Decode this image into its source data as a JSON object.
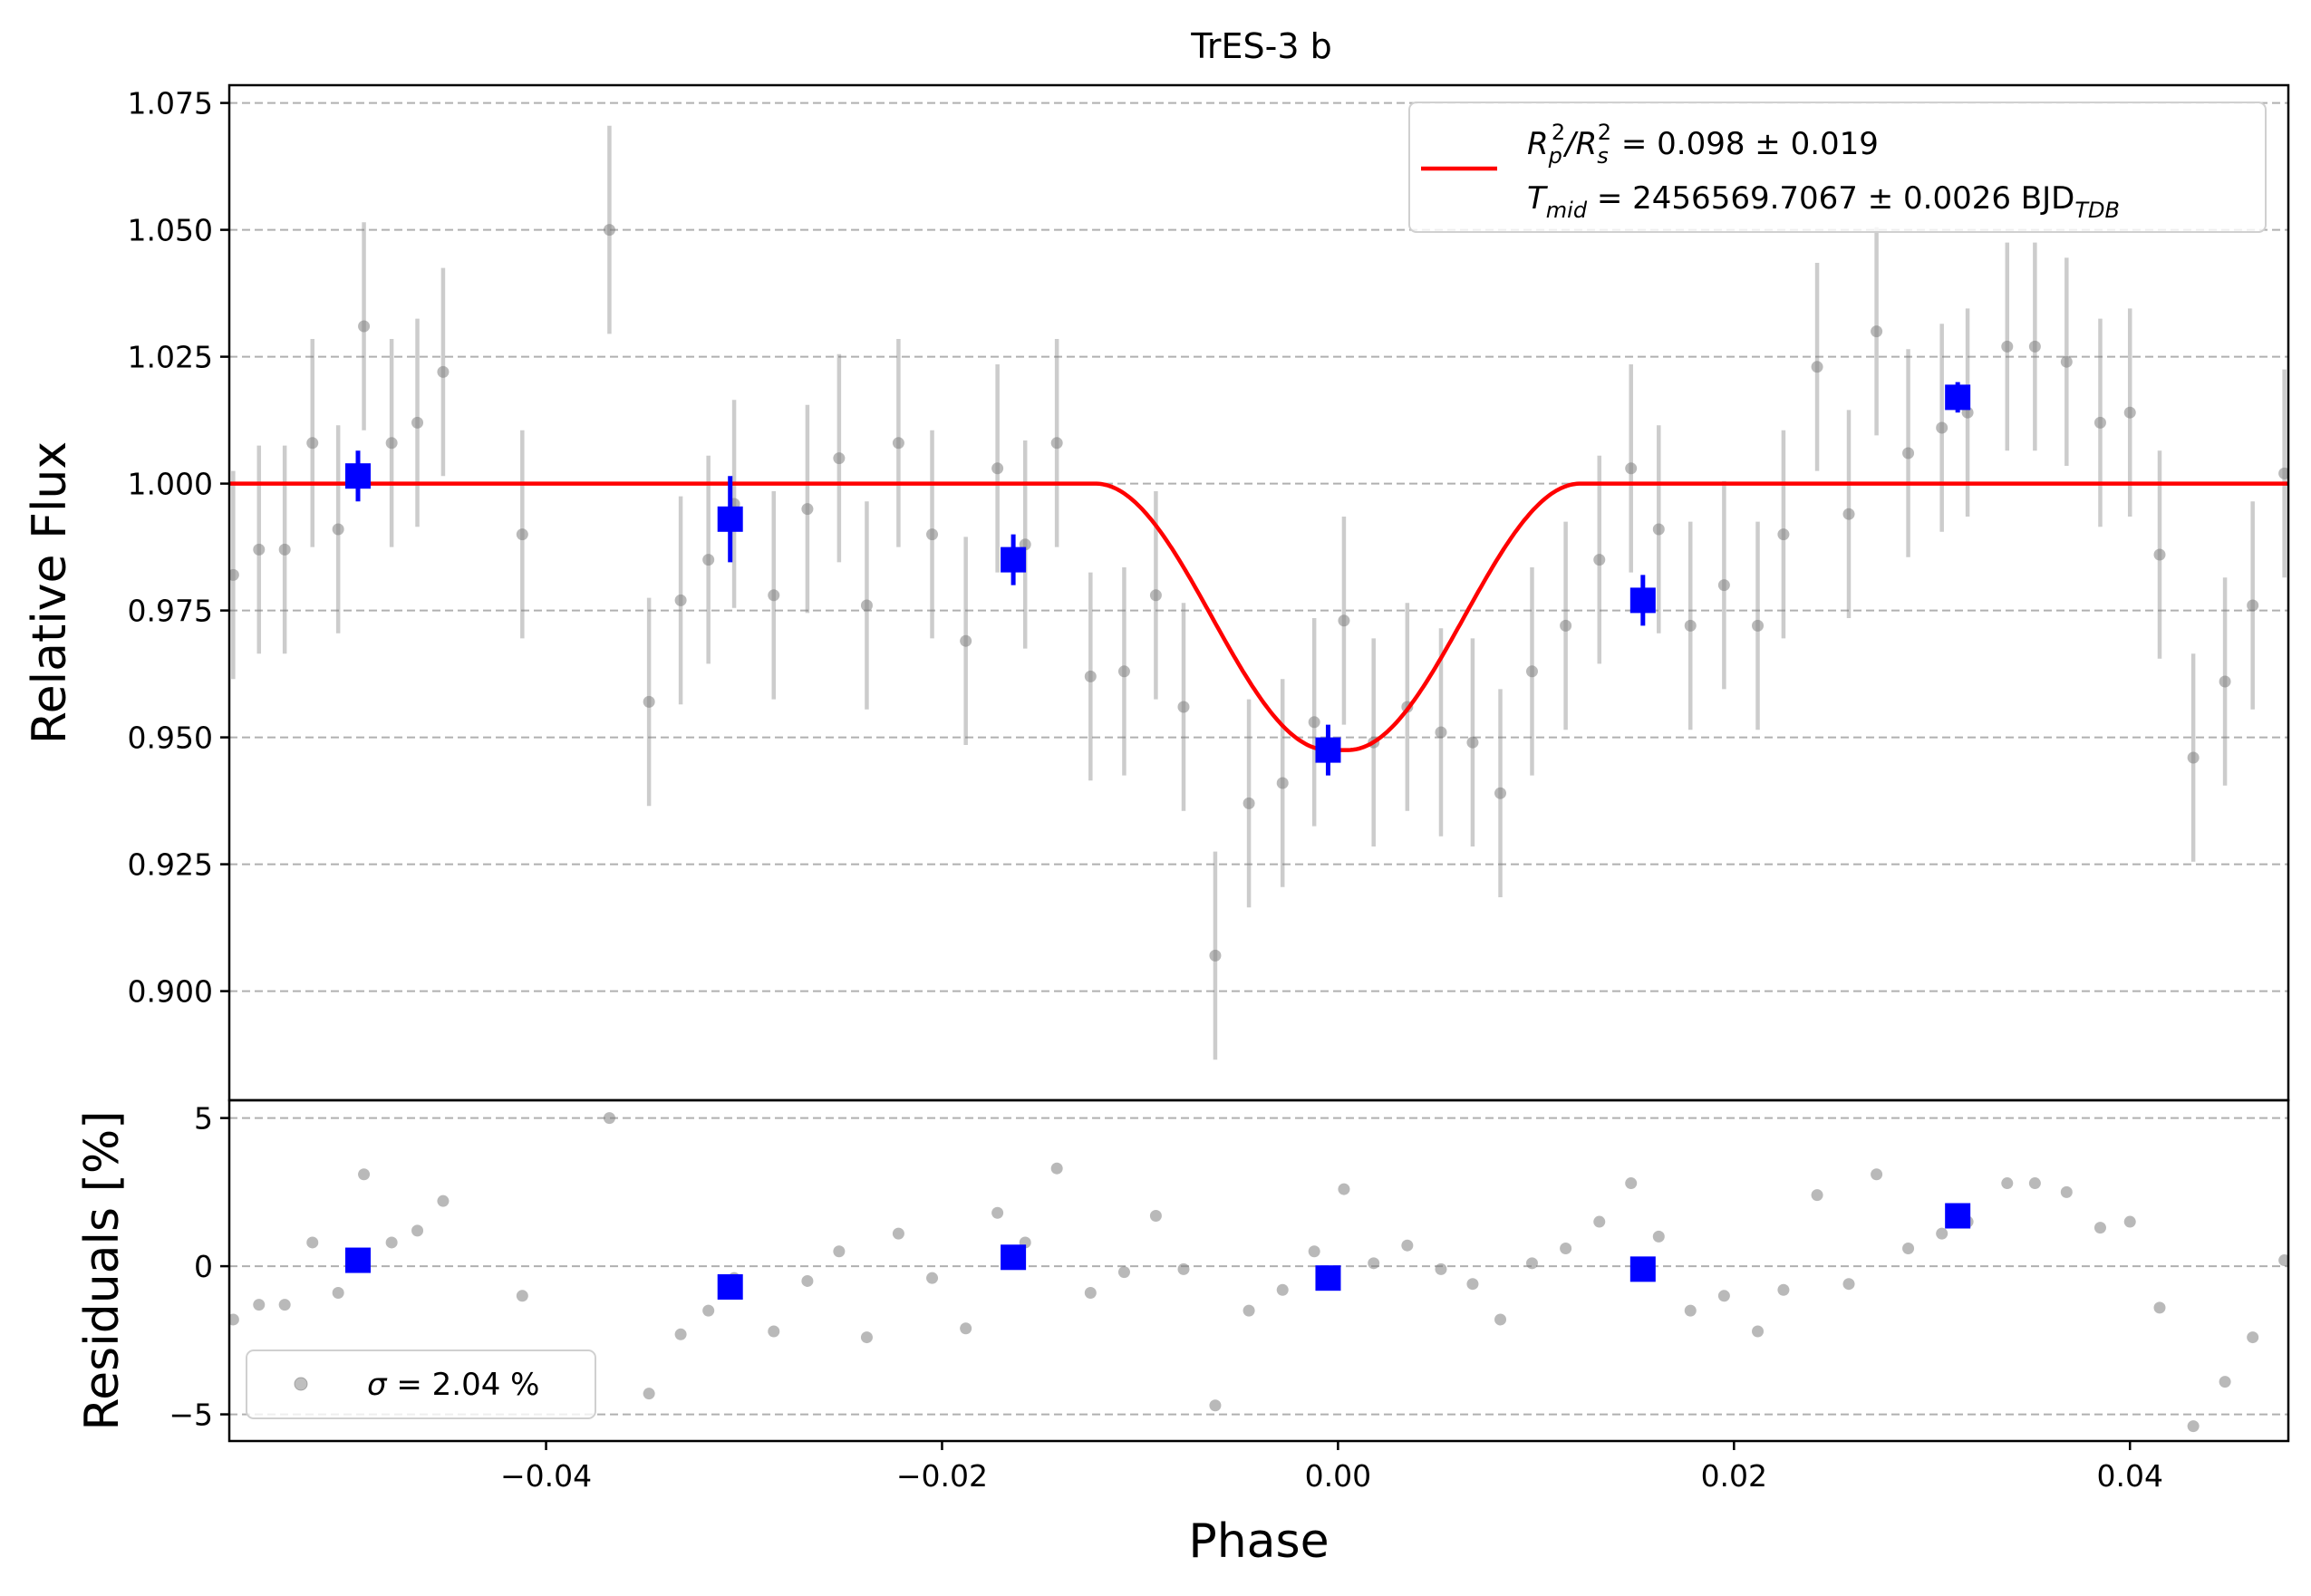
{
  "chart_data": {
    "type": "scatter",
    "title": "TrES-3 b",
    "xlabel": "Phase",
    "xlim": [
      -0.056,
      0.048
    ],
    "x_ticks": [
      "−0.04",
      "−0.02",
      "0.00",
      "0.02",
      "0.04"
    ],
    "x_tick_values": [
      -0.04,
      -0.02,
      0.0,
      0.02,
      0.04
    ],
    "grid": "horizontal dashed",
    "colors": {
      "raw": "#808080",
      "binned": "#0000ff",
      "model": "#ff0000",
      "grid": "#b0b0b0"
    },
    "flux_panel": {
      "ylabel": "Relative Flux",
      "ylim": [
        0.8785,
        1.0785
      ],
      "y_ticks": [
        "0.900",
        "0.925",
        "0.950",
        "0.975",
        "1.000",
        "1.025",
        "1.050",
        "1.075"
      ],
      "y_tick_values": [
        0.9,
        0.925,
        0.95,
        0.975,
        1.0,
        1.025,
        1.05,
        1.075
      ],
      "legend": {
        "placement": "top-right",
        "line1": {
          "main": "R",
          "sub1": "p",
          "sup1": "2",
          "slash": "/R",
          "sub2": "s",
          "sup2": "2",
          "rest": " = 0.098 ± 0.019"
        },
        "line2": {
          "main": "T",
          "sub1": "mid",
          "rest": " = 2456569.7067 ± 0.0026 BJD",
          "sub2": "TDB"
        }
      },
      "raw_points": [
        [
          -0.0558,
          0.982
        ],
        [
          -0.0545,
          0.987
        ],
        [
          -0.0532,
          0.987
        ],
        [
          -0.0518,
          1.008
        ],
        [
          -0.0505,
          0.991
        ],
        [
          -0.0492,
          1.031
        ],
        [
          -0.0478,
          1.008
        ],
        [
          -0.0465,
          1.012
        ],
        [
          -0.0452,
          1.022
        ],
        [
          -0.0412,
          0.99
        ],
        [
          -0.0368,
          1.05
        ],
        [
          -0.0348,
          0.957
        ],
        [
          -0.0332,
          0.977
        ],
        [
          -0.0318,
          0.985
        ],
        [
          -0.0305,
          0.996
        ],
        [
          -0.0285,
          0.978
        ],
        [
          -0.0268,
          0.995
        ],
        [
          -0.0252,
          1.005
        ],
        [
          -0.0238,
          0.976
        ],
        [
          -0.0222,
          1.008
        ],
        [
          -0.0205,
          0.99
        ],
        [
          -0.0188,
          0.969
        ],
        [
          -0.0172,
          1.003
        ],
        [
          -0.0158,
          0.988
        ],
        [
          -0.0142,
          1.008
        ],
        [
          -0.0125,
          0.962
        ],
        [
          -0.0108,
          0.963
        ],
        [
          -0.0092,
          0.978
        ],
        [
          -0.0078,
          0.956
        ],
        [
          -0.0062,
          0.907
        ],
        [
          -0.0045,
          0.937
        ],
        [
          -0.0028,
          0.941
        ],
        [
          -0.0012,
          0.953
        ],
        [
          0.0003,
          0.973
        ],
        [
          0.0018,
          0.949
        ],
        [
          0.0035,
          0.956
        ],
        [
          0.0052,
          0.951
        ],
        [
          0.0068,
          0.949
        ],
        [
          0.0082,
          0.939
        ],
        [
          0.0098,
          0.963
        ],
        [
          0.0115,
          0.972
        ],
        [
          0.0132,
          0.985
        ],
        [
          0.0148,
          1.003
        ],
        [
          0.0162,
          0.991
        ],
        [
          0.0178,
          0.972
        ],
        [
          0.0195,
          0.98
        ],
        [
          0.0212,
          0.972
        ],
        [
          0.0225,
          0.99
        ],
        [
          0.0242,
          1.023
        ],
        [
          0.0258,
          0.994
        ],
        [
          0.0272,
          1.03
        ],
        [
          0.0288,
          1.006
        ],
        [
          0.0305,
          1.011
        ],
        [
          0.0318,
          1.014
        ],
        [
          0.0338,
          1.027
        ],
        [
          0.0352,
          1.027
        ],
        [
          0.0368,
          1.024
        ],
        [
          0.0385,
          1.012
        ],
        [
          0.04,
          1.014
        ],
        [
          0.0415,
          0.986
        ],
        [
          0.0432,
          0.946
        ],
        [
          0.0448,
          0.961
        ],
        [
          0.0462,
          0.976
        ],
        [
          0.0478,
          1.002
        ]
      ],
      "raw_error": 0.0205,
      "binned_points": [
        {
          "x": -0.0495,
          "y": 1.0015,
          "err": 0.005
        },
        {
          "x": -0.0307,
          "y": 0.993,
          "err": 0.0085
        },
        {
          "x": -0.0164,
          "y": 0.985,
          "err": 0.005
        },
        {
          "x": -0.0005,
          "y": 0.9475,
          "err": 0.005
        },
        {
          "x": 0.0154,
          "y": 0.977,
          "err": 0.005
        },
        {
          "x": 0.0313,
          "y": 1.017,
          "err": 0.003
        }
      ],
      "model": {
        "depth": 0.0525,
        "t_full": 0.0245,
        "t_flat": 0.001
      }
    },
    "residual_panel": {
      "ylabel": "Residuals [%]",
      "ylim": [
        -5.9,
        5.6
      ],
      "y_ticks": [
        "−5",
        "0",
        "5"
      ],
      "y_tick_values": [
        -5,
        0,
        5
      ],
      "legend": {
        "placement": "bottom-left",
        "sigma_symbol": "σ",
        "text": " = 2.04 %"
      },
      "raw_points": [
        [
          -0.0558,
          -1.8
        ],
        [
          -0.0545,
          -1.3
        ],
        [
          -0.0532,
          -1.3
        ],
        [
          -0.0518,
          0.8
        ],
        [
          -0.0505,
          -0.9
        ],
        [
          -0.0492,
          3.1
        ],
        [
          -0.0478,
          0.8
        ],
        [
          -0.0465,
          1.2
        ],
        [
          -0.0452,
          2.2
        ],
        [
          -0.0412,
          -1.0
        ],
        [
          -0.0368,
          5.0
        ],
        [
          -0.0348,
          -4.3
        ],
        [
          -0.0332,
          -2.3
        ],
        [
          -0.0318,
          -1.5
        ],
        [
          -0.0305,
          -0.4
        ],
        [
          -0.0285,
          -2.2
        ],
        [
          -0.0268,
          -0.5
        ],
        [
          -0.0252,
          0.5
        ],
        [
          -0.0238,
          -2.4
        ],
        [
          -0.0222,
          1.1
        ],
        [
          -0.0205,
          -0.4
        ],
        [
          -0.0188,
          -2.1
        ],
        [
          -0.0172,
          1.8
        ],
        [
          -0.0158,
          0.8
        ],
        [
          -0.0142,
          3.3
        ],
        [
          -0.0125,
          -0.9
        ],
        [
          -0.0108,
          -0.2
        ],
        [
          -0.0092,
          1.7
        ],
        [
          -0.0078,
          -0.1
        ],
        [
          -0.0062,
          -4.7
        ],
        [
          -0.0045,
          -1.5
        ],
        [
          -0.0028,
          -0.8
        ],
        [
          -0.0012,
          0.5
        ],
        [
          0.0003,
          2.6
        ],
        [
          0.0018,
          0.1
        ],
        [
          0.0035,
          0.7
        ],
        [
          0.0052,
          -0.1
        ],
        [
          0.0068,
          -0.6
        ],
        [
          0.0082,
          -1.8
        ],
        [
          0.0098,
          0.1
        ],
        [
          0.0115,
          0.6
        ],
        [
          0.0132,
          1.5
        ],
        [
          0.0148,
          2.8
        ],
        [
          0.0162,
          1.0
        ],
        [
          0.0178,
          -1.5
        ],
        [
          0.0195,
          -1.0
        ],
        [
          0.0212,
          -2.2
        ],
        [
          0.0225,
          -0.8
        ],
        [
          0.0242,
          2.4
        ],
        [
          0.0258,
          -0.6
        ],
        [
          0.0272,
          3.1
        ],
        [
          0.0288,
          0.6
        ],
        [
          0.0305,
          1.1
        ],
        [
          0.0318,
          1.5
        ],
        [
          0.0338,
          2.8
        ],
        [
          0.0352,
          2.8
        ],
        [
          0.0368,
          2.5
        ],
        [
          0.0385,
          1.3
        ],
        [
          0.04,
          1.5
        ],
        [
          0.0415,
          -1.4
        ],
        [
          0.0432,
          -5.4
        ],
        [
          0.0448,
          -3.9
        ],
        [
          0.0462,
          -2.4
        ],
        [
          0.0478,
          0.2
        ]
      ],
      "binned_points": [
        {
          "x": -0.0495,
          "y": 0.2
        },
        {
          "x": -0.0307,
          "y": -0.7
        },
        {
          "x": -0.0164,
          "y": 0.3
        },
        {
          "x": -0.0005,
          "y": -0.4
        },
        {
          "x": 0.0154,
          "y": -0.1
        },
        {
          "x": 0.0313,
          "y": 1.7
        }
      ]
    }
  }
}
